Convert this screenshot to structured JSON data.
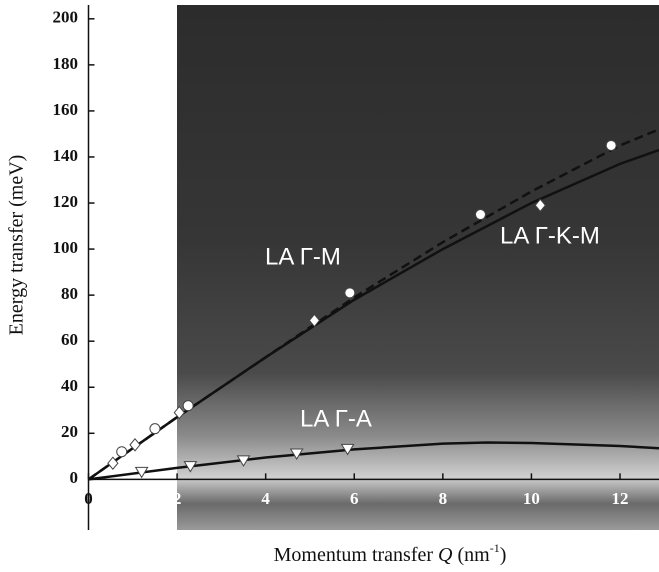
{
  "chart_data": {
    "type": "scatter",
    "xlabel": [
      "Momentum transfer ",
      "Q",
      " (nm",
      "-1",
      ")"
    ],
    "ylabel": "Energy transfer (meV)",
    "xlim": [
      0,
      12.88
    ],
    "ylim": [
      -22,
      206
    ],
    "xticks": [
      0,
      2,
      4,
      6,
      8,
      10,
      12
    ],
    "yticks": [
      0,
      20,
      40,
      60,
      80,
      100,
      120,
      140,
      160,
      180,
      200
    ],
    "annotations": [
      "LA Γ-M",
      "LA Γ-K-M",
      "LA Γ-A"
    ],
    "series": [
      {
        "marker": "circle",
        "color": "#ffffff",
        "x": [
          0.75,
          1.5,
          2.25,
          5.9,
          8.85,
          11.8
        ],
        "values": [
          12,
          22,
          32,
          81,
          115,
          145
        ]
      },
      {
        "marker": "diamond",
        "color": "#ffffff",
        "x": [
          0.55,
          1.05,
          2.05,
          5.1,
          10.2
        ],
        "values": [
          7,
          15,
          29,
          69,
          119
        ]
      },
      {
        "marker": "triangle",
        "color": "#ffffff",
        "x": [
          1.2,
          2.3,
          3.5,
          4.7,
          5.85
        ],
        "values": [
          3,
          5.5,
          8,
          11,
          13
        ]
      }
    ],
    "lines": [
      {
        "style": "solid",
        "color": "#111111",
        "x": [
          0,
          2,
          4,
          6,
          8,
          10,
          12,
          12.88
        ],
        "values": [
          0,
          27,
          53,
          78,
          100,
          120,
          137,
          143
        ]
      },
      {
        "style": "dashed",
        "color": "#111111",
        "x": [
          0,
          2,
          4,
          6,
          8,
          10,
          12,
          12.88
        ],
        "values": [
          0,
          27,
          53,
          79,
          103,
          125,
          145,
          152
        ]
      },
      {
        "style": "solid",
        "color": "#111111",
        "x": [
          0,
          2,
          4,
          6,
          8,
          9,
          10,
          12,
          12.88
        ],
        "values": [
          0,
          5,
          9.5,
          13,
          15.5,
          16,
          15.8,
          14.5,
          13.5
        ]
      }
    ]
  }
}
